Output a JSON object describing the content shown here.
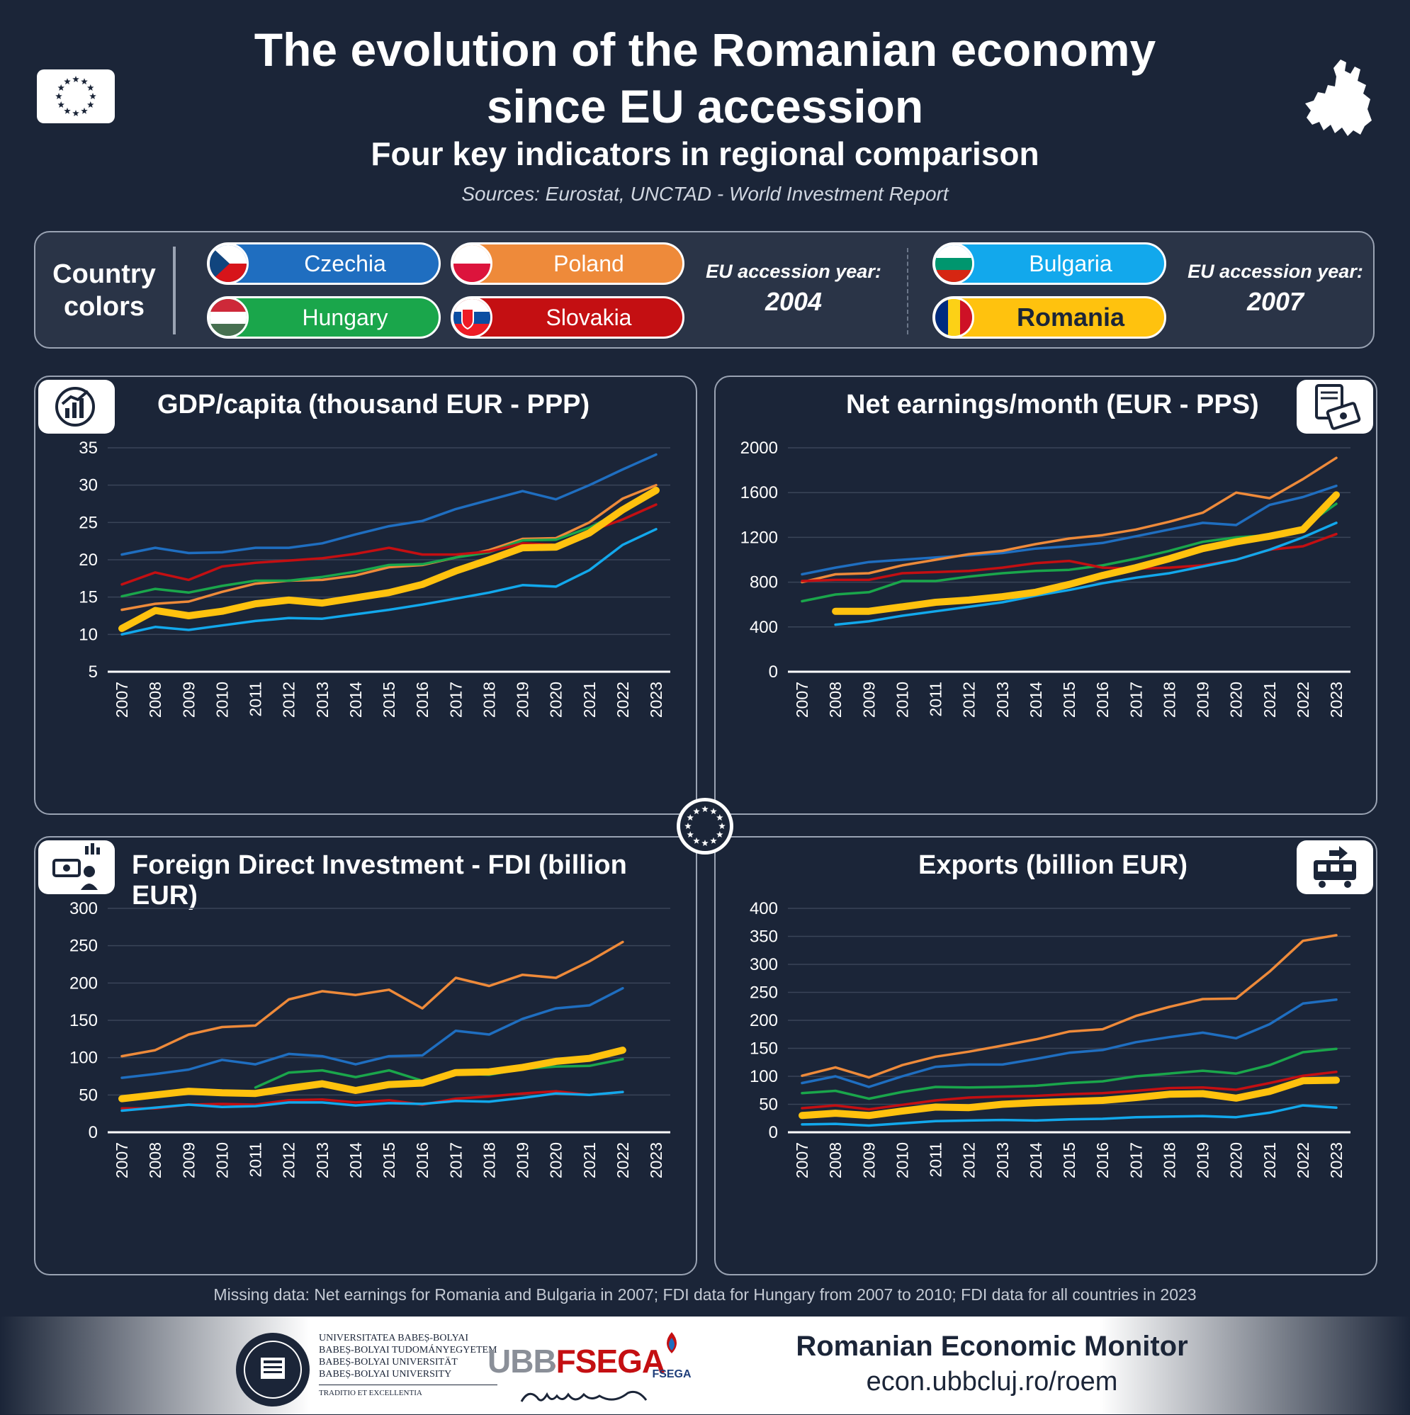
{
  "header": {
    "title_line1": "The evolution of the Romanian economy",
    "title_line2": "since EU accession",
    "subtitle": "Four key indicators in regional comparison",
    "sources": "Sources: Eurostat, UNCTAD - World Investment Report"
  },
  "legend": {
    "label_line1": "Country",
    "label_line2": "colors",
    "group1_caption": "EU accession year:",
    "group1_year": "2004",
    "group2_caption": "EU accession year:",
    "group2_year": "2007",
    "countries": [
      {
        "name": "Czechia",
        "color": "#1f6ec0",
        "text": "#ffffff"
      },
      {
        "name": "Poland",
        "color": "#ee8a3a",
        "text": "#ffffff"
      },
      {
        "name": "Hungary",
        "color": "#1aa64b",
        "text": "#ffffff"
      },
      {
        "name": "Slovakia",
        "color": "#c40f12",
        "text": "#ffffff"
      },
      {
        "name": "Bulgaria",
        "color": "#12a8ec",
        "text": "#ffffff"
      },
      {
        "name": "Romania",
        "color": "#ffc20e",
        "text": "#1b2538"
      }
    ]
  },
  "chart_data": [
    {
      "type": "line",
      "title": "GDP/capita (thousand EUR - PPP)",
      "x": [
        "2007",
        "2008",
        "2009",
        "2010",
        "2011",
        "2012",
        "2013",
        "2014",
        "2015",
        "2016",
        "2017",
        "2018",
        "2019",
        "2020",
        "2021",
        "2022",
        "2023"
      ],
      "ylim": [
        5,
        35
      ],
      "yticks": [
        5,
        10,
        15,
        20,
        25,
        30,
        35
      ],
      "grid": true,
      "series": [
        {
          "name": "Czechia",
          "color": "#1f6ec0",
          "values": [
            20.7,
            21.6,
            20.9,
            21.0,
            21.6,
            21.6,
            22.2,
            23.4,
            24.5,
            25.2,
            26.8,
            28.0,
            29.2,
            28.1,
            30.0,
            32.1,
            34.1
          ]
        },
        {
          "name": "Poland",
          "color": "#ee8a3a",
          "values": [
            13.3,
            14.1,
            14.4,
            15.7,
            16.8,
            17.2,
            17.3,
            17.9,
            19.0,
            19.3,
            20.3,
            21.3,
            22.8,
            22.9,
            25.0,
            28.2,
            30.0
          ]
        },
        {
          "name": "Hungary",
          "color": "#1aa64b",
          "values": [
            15.1,
            16.1,
            15.6,
            16.5,
            17.2,
            17.2,
            17.7,
            18.4,
            19.3,
            19.4,
            20.3,
            21.0,
            22.6,
            22.7,
            24.3,
            26.6,
            29.0
          ]
        },
        {
          "name": "Slovakia",
          "color": "#c40f12",
          "values": [
            16.7,
            18.3,
            17.3,
            19.1,
            19.6,
            19.9,
            20.2,
            20.8,
            21.6,
            20.7,
            20.7,
            21.1,
            22.2,
            22.0,
            23.8,
            25.4,
            27.4
          ]
        },
        {
          "name": "Bulgaria",
          "color": "#12a8ec",
          "values": [
            10.0,
            11.0,
            10.6,
            11.2,
            11.8,
            12.2,
            12.1,
            12.7,
            13.3,
            14.0,
            14.8,
            15.6,
            16.6,
            16.4,
            18.6,
            22.0,
            24.1
          ]
        },
        {
          "name": "Romania",
          "color": "#ffc20e",
          "values": [
            10.8,
            13.2,
            12.5,
            13.1,
            14.1,
            14.6,
            14.2,
            14.9,
            15.6,
            16.7,
            18.5,
            20.0,
            21.6,
            21.7,
            23.6,
            26.7,
            29.3
          ]
        }
      ]
    },
    {
      "type": "line",
      "title": "Net earnings/month (EUR - PPS)",
      "x": [
        "2007",
        "2008",
        "2009",
        "2010",
        "2011",
        "2012",
        "2013",
        "2014",
        "2015",
        "2016",
        "2017",
        "2018",
        "2019",
        "2020",
        "2021",
        "2022",
        "2023"
      ],
      "ylim": [
        0,
        2000
      ],
      "yticks": [
        0,
        400,
        800,
        1200,
        1600,
        2000
      ],
      "grid": true,
      "series": [
        {
          "name": "Czechia",
          "color": "#1f6ec0",
          "values": [
            870,
            930,
            980,
            1000,
            1020,
            1040,
            1060,
            1100,
            1120,
            1150,
            1210,
            1270,
            1330,
            1310,
            1490,
            1560,
            1660
          ]
        },
        {
          "name": "Poland",
          "color": "#ee8a3a",
          "values": [
            800,
            870,
            880,
            950,
            1000,
            1050,
            1080,
            1140,
            1190,
            1220,
            1270,
            1340,
            1420,
            1600,
            1550,
            1720,
            1910
          ]
        },
        {
          "name": "Hungary",
          "color": "#1aa64b",
          "values": [
            630,
            690,
            710,
            810,
            810,
            850,
            880,
            900,
            910,
            950,
            1010,
            1080,
            1160,
            1200,
            1220,
            1290,
            1500
          ]
        },
        {
          "name": "Slovakia",
          "color": "#c40f12",
          "values": [
            810,
            820,
            820,
            880,
            890,
            900,
            930,
            970,
            990,
            930,
            920,
            930,
            950,
            1000,
            1090,
            1120,
            1230
          ]
        },
        {
          "name": "Bulgaria",
          "color": "#12a8ec",
          "values": [
            null,
            420,
            450,
            500,
            540,
            580,
            620,
            680,
            730,
            790,
            840,
            880,
            940,
            1000,
            1090,
            1200,
            1330
          ]
        },
        {
          "name": "Romania",
          "color": "#ffc20e",
          "values": [
            null,
            540,
            540,
            580,
            620,
            640,
            670,
            710,
            780,
            860,
            930,
            1010,
            1100,
            1160,
            1210,
            1270,
            1580
          ]
        }
      ]
    },
    {
      "type": "line",
      "title": "Foreign Direct Investment - FDI (billion EUR)",
      "x": [
        "2007",
        "2008",
        "2009",
        "2010",
        "2011",
        "2012",
        "2013",
        "2014",
        "2015",
        "2016",
        "2017",
        "2018",
        "2019",
        "2020",
        "2021",
        "2022",
        "2023"
      ],
      "ylim": [
        0,
        300
      ],
      "yticks": [
        0,
        50,
        100,
        150,
        200,
        250,
        300
      ],
      "grid": true,
      "series": [
        {
          "name": "Czechia",
          "color": "#1f6ec0",
          "values": [
            73,
            78,
            84,
            97,
            91,
            105,
            102,
            91,
            102,
            103,
            136,
            131,
            152,
            166,
            170,
            193,
            null
          ]
        },
        {
          "name": "Poland",
          "color": "#ee8a3a",
          "values": [
            102,
            110,
            131,
            141,
            143,
            178,
            189,
            184,
            191,
            166,
            207,
            196,
            211,
            207,
            229,
            255,
            null
          ]
        },
        {
          "name": "Hungary",
          "color": "#1aa64b",
          "values": [
            null,
            null,
            null,
            null,
            60,
            80,
            83,
            74,
            83,
            69,
            79,
            77,
            85,
            88,
            89,
            98,
            null
          ]
        },
        {
          "name": "Slovakia",
          "color": "#c40f12",
          "values": [
            32,
            32,
            37,
            38,
            37,
            43,
            44,
            40,
            43,
            37,
            45,
            48,
            52,
            55,
            50,
            54,
            null
          ]
        },
        {
          "name": "Bulgaria",
          "color": "#12a8ec",
          "values": [
            29,
            33,
            37,
            34,
            35,
            40,
            40,
            36,
            39,
            38,
            42,
            41,
            46,
            52,
            50,
            54,
            null
          ]
        },
        {
          "name": "Romania",
          "color": "#ffc20e",
          "values": [
            45,
            50,
            55,
            53,
            52,
            59,
            65,
            56,
            64,
            66,
            80,
            81,
            87,
            95,
            99,
            110,
            null
          ]
        }
      ]
    },
    {
      "type": "line",
      "title": "Exports (billion EUR)",
      "x": [
        "2007",
        "2008",
        "2009",
        "2010",
        "2011",
        "2012",
        "2013",
        "2014",
        "2015",
        "2016",
        "2017",
        "2018",
        "2019",
        "2020",
        "2021",
        "2022",
        "2023"
      ],
      "ylim": [
        0,
        400
      ],
      "yticks": [
        0,
        50,
        100,
        150,
        200,
        250,
        300,
        350,
        400
      ],
      "grid": true,
      "series": [
        {
          "name": "Czechia",
          "color": "#1f6ec0",
          "values": [
            88,
            100,
            81,
            100,
            117,
            121,
            121,
            131,
            142,
            147,
            161,
            170,
            178,
            168,
            193,
            230,
            237
          ]
        },
        {
          "name": "Poland",
          "color": "#ee8a3a",
          "values": [
            101,
            116,
            98,
            120,
            135,
            144,
            155,
            166,
            180,
            184,
            208,
            224,
            238,
            239,
            287,
            342,
            352
          ]
        },
        {
          "name": "Hungary",
          "color": "#1aa64b",
          "values": [
            70,
            74,
            60,
            72,
            81,
            80,
            81,
            83,
            88,
            91,
            100,
            105,
            110,
            105,
            120,
            143,
            149
          ]
        },
        {
          "name": "Slovakia",
          "color": "#c40f12",
          "values": [
            43,
            48,
            41,
            49,
            57,
            62,
            64,
            65,
            68,
            70,
            74,
            79,
            80,
            76,
            88,
            101,
            108
          ]
        },
        {
          "name": "Bulgaria",
          "color": "#12a8ec",
          "values": [
            14,
            15,
            12,
            16,
            20,
            21,
            22,
            21,
            23,
            24,
            27,
            28,
            29,
            27,
            35,
            48,
            44
          ]
        },
        {
          "name": "Romania",
          "color": "#ffc20e",
          "values": [
            30,
            34,
            30,
            38,
            45,
            44,
            50,
            53,
            55,
            57,
            62,
            68,
            69,
            61,
            73,
            92,
            93
          ]
        }
      ]
    }
  ],
  "footer": {
    "note": "Missing data: Net earnings for Romania and Bulgaria in 2007; FDI data for Hungary from 2007 to 2010; FDI data for all countries in 2023",
    "univ_line1": "UNIVERSITATEA BABEȘ-BOLYAI",
    "univ_line2": "BABEȘ-BOLYAI TUDOMÁNYEGYETEM",
    "univ_line3": "BABEȘ-BOLYAI UNIVERSITÄT",
    "univ_line4": "BABEȘ-BOLYAI UNIVERSITY",
    "univ_motto": "TRADITIO ET EXCELLENTIA",
    "fsega_logo": "UBBFSEGA",
    "fsega_badge": "FSEGA",
    "monitor_name": "Romanian Economic Monitor",
    "monitor_url": "econ.ubbcluj.ro/roem"
  }
}
